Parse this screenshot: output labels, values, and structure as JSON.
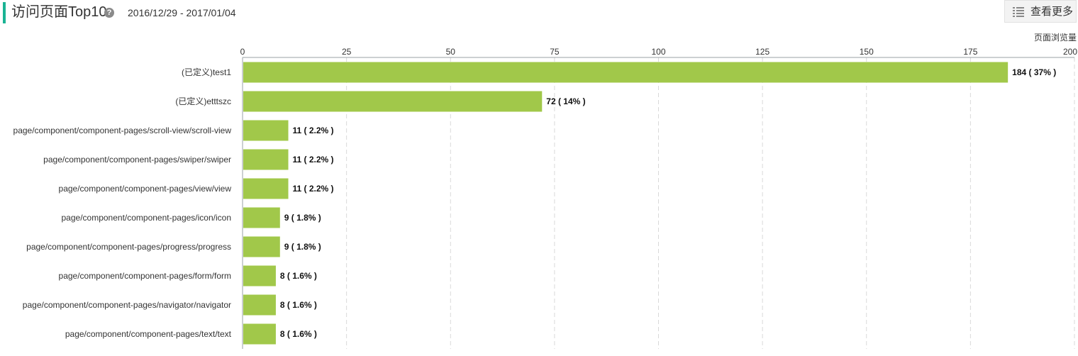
{
  "header": {
    "title": "访问页面Top10",
    "help_icon": "question-circle-icon",
    "help_glyph": "?",
    "date_range": "2016/12/29 - 2017/01/04",
    "more_button_label": "查看更多",
    "more_button_icon": "list-icon"
  },
  "colors": {
    "accent": "#1ab394",
    "bar": "#a1c84a",
    "gridline": "#d9d9d9",
    "axis": "#9aa0a6"
  },
  "chart_data": {
    "type": "bar",
    "orientation": "horizontal",
    "axis_title": "页面浏览量",
    "xlim": [
      0,
      200
    ],
    "ticks": [
      0,
      25,
      50,
      75,
      100,
      125,
      150,
      175,
      200
    ],
    "grid": true,
    "categories": [
      "(已定义)test1",
      "(已定义)etttszc",
      "page/component/component-pages/scroll-view/scroll-view",
      "page/component/component-pages/swiper/swiper",
      "page/component/component-pages/view/view",
      "page/component/component-pages/icon/icon",
      "page/component/component-pages/progress/progress",
      "page/component/component-pages/form/form",
      "page/component/component-pages/navigator/navigator",
      "page/component/component-pages/text/text"
    ],
    "values": [
      184,
      72,
      11,
      11,
      11,
      9,
      9,
      8,
      8,
      8
    ],
    "value_labels": [
      "184 ( 37% )",
      "72 ( 14% )",
      "11 ( 2.2% )",
      "11 ( 2.2% )",
      "11 ( 2.2% )",
      "9 ( 1.8% )",
      "9 ( 1.8% )",
      "8 ( 1.6% )",
      "8 ( 1.6% )",
      "8 ( 1.6% )"
    ]
  }
}
